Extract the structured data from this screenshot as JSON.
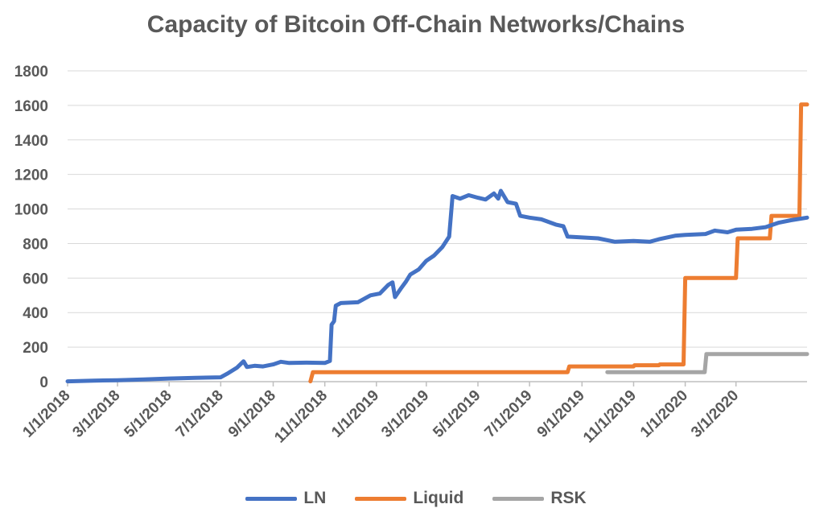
{
  "chart_data": {
    "type": "line",
    "title": "Capacity of Bitcoin Off-Chain Networks/Chains",
    "xlabel": "",
    "ylabel": "",
    "xlim": [
      "2018-01-01",
      "2020-05-24"
    ],
    "ylim": [
      0,
      1800
    ],
    "y_ticks": [
      0,
      200,
      400,
      600,
      800,
      1000,
      1200,
      1400,
      1600,
      1800
    ],
    "x_tick_labels": [
      "1/1/2018",
      "3/1/2018",
      "5/1/2018",
      "7/1/2018",
      "9/1/2018",
      "11/1/2018",
      "1/1/2019",
      "3/1/2019",
      "5/1/2019",
      "7/1/2019",
      "9/1/2019",
      "11/1/2019",
      "1/1/2020",
      "3/1/2020"
    ],
    "grid": "horizontal",
    "legend_position": "bottom",
    "series": [
      {
        "name": "LN",
        "color": "#4472C4",
        "points": [
          [
            "2018-01-01",
            2
          ],
          [
            "2018-02-01",
            6
          ],
          [
            "2018-03-01",
            8
          ],
          [
            "2018-04-01",
            13
          ],
          [
            "2018-05-01",
            18
          ],
          [
            "2018-06-01",
            22
          ],
          [
            "2018-07-01",
            25
          ],
          [
            "2018-07-10",
            50
          ],
          [
            "2018-07-20",
            80
          ],
          [
            "2018-07-28",
            118
          ],
          [
            "2018-08-01",
            85
          ],
          [
            "2018-08-10",
            92
          ],
          [
            "2018-08-20",
            88
          ],
          [
            "2018-09-01",
            100
          ],
          [
            "2018-09-10",
            115
          ],
          [
            "2018-09-20",
            108
          ],
          [
            "2018-10-10",
            110
          ],
          [
            "2018-11-01",
            108
          ],
          [
            "2018-11-07",
            120
          ],
          [
            "2018-11-09",
            330
          ],
          [
            "2018-11-12",
            350
          ],
          [
            "2018-11-14",
            440
          ],
          [
            "2018-11-20",
            455
          ],
          [
            "2018-12-10",
            460
          ],
          [
            "2018-12-25",
            500
          ],
          [
            "2019-01-05",
            510
          ],
          [
            "2019-01-15",
            560
          ],
          [
            "2019-01-20",
            575
          ],
          [
            "2019-01-23",
            490
          ],
          [
            "2019-01-30",
            540
          ],
          [
            "2019-02-05",
            580
          ],
          [
            "2019-02-10",
            620
          ],
          [
            "2019-02-20",
            650
          ],
          [
            "2019-03-01",
            700
          ],
          [
            "2019-03-10",
            730
          ],
          [
            "2019-03-20",
            780
          ],
          [
            "2019-03-28",
            840
          ],
          [
            "2019-04-01",
            1075
          ],
          [
            "2019-04-10",
            1060
          ],
          [
            "2019-04-20",
            1080
          ],
          [
            "2019-05-01",
            1065
          ],
          [
            "2019-05-10",
            1055
          ],
          [
            "2019-05-20",
            1090
          ],
          [
            "2019-05-25",
            1060
          ],
          [
            "2019-05-28",
            1105
          ],
          [
            "2019-06-05",
            1040
          ],
          [
            "2019-06-15",
            1030
          ],
          [
            "2019-06-20",
            960
          ],
          [
            "2019-07-01",
            950
          ],
          [
            "2019-07-15",
            940
          ],
          [
            "2019-08-01",
            910
          ],
          [
            "2019-08-10",
            900
          ],
          [
            "2019-08-15",
            840
          ],
          [
            "2019-09-01",
            835
          ],
          [
            "2019-09-20",
            830
          ],
          [
            "2019-10-10",
            810
          ],
          [
            "2019-11-01",
            815
          ],
          [
            "2019-11-20",
            810
          ],
          [
            "2019-12-01",
            825
          ],
          [
            "2019-12-20",
            845
          ],
          [
            "2020-01-01",
            850
          ],
          [
            "2020-01-25",
            855
          ],
          [
            "2020-02-05",
            875
          ],
          [
            "2020-02-20",
            865
          ],
          [
            "2020-03-01",
            880
          ],
          [
            "2020-03-20",
            885
          ],
          [
            "2020-04-05",
            895
          ],
          [
            "2020-04-20",
            920
          ],
          [
            "2020-05-05",
            935
          ],
          [
            "2020-05-24",
            950
          ]
        ]
      },
      {
        "name": "Liquid",
        "color": "#ED7D31",
        "points": [
          [
            "2018-10-15",
            2
          ],
          [
            "2018-10-18",
            55
          ],
          [
            "2019-08-15",
            55
          ],
          [
            "2019-08-17",
            88
          ],
          [
            "2019-11-01",
            88
          ],
          [
            "2019-11-02",
            95
          ],
          [
            "2019-12-01",
            95
          ],
          [
            "2019-12-02",
            100
          ],
          [
            "2019-12-30",
            100
          ],
          [
            "2020-01-01",
            600
          ],
          [
            "2020-03-01",
            600
          ],
          [
            "2020-03-03",
            830
          ],
          [
            "2020-04-10",
            830
          ],
          [
            "2020-04-12",
            960
          ],
          [
            "2020-05-15",
            960
          ],
          [
            "2020-05-17",
            1605
          ],
          [
            "2020-05-24",
            1605
          ]
        ]
      },
      {
        "name": "RSK",
        "color": "#A5A5A5",
        "points": [
          [
            "2019-10-01",
            55
          ],
          [
            "2020-01-24",
            55
          ],
          [
            "2020-01-26",
            160
          ],
          [
            "2020-05-24",
            160
          ]
        ]
      }
    ]
  }
}
